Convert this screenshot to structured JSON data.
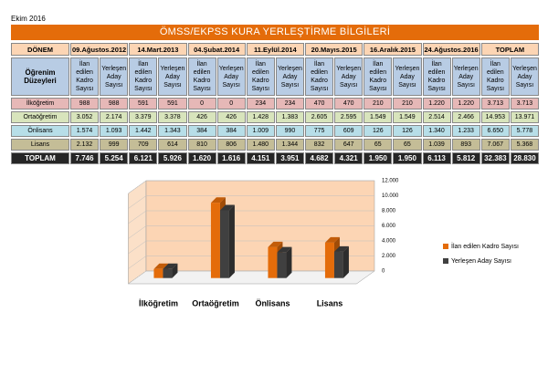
{
  "header": {
    "date": "Ekim 2016",
    "title": "ÖMSS/EKPSS KURA YERLEŞTİRME BİLGİLERİ"
  },
  "table": {
    "period_label": "DÖNEM",
    "periods": [
      "09.Ağustos.2012",
      "14.Mart.2013",
      "04.Şubat.2014",
      "11.Eylül.2014",
      "20.Mayıs.2015",
      "16.Aralık.2015",
      "24.Ağustos.2016",
      "TOPLAM"
    ],
    "level_label": "Öğrenim Düzeyleri",
    "sub_headers": [
      "İlan edilen Kadro Sayısı",
      "Yerleşen Aday Sayısı"
    ],
    "rows": [
      {
        "label": "İlköğretim",
        "values": [
          "988",
          "988",
          "591",
          "591",
          "0",
          "0",
          "234",
          "234",
          "470",
          "470",
          "210",
          "210",
          "1.220",
          "1.220",
          "3.713",
          "3.713"
        ]
      },
      {
        "label": "Ortaöğretim",
        "values": [
          "3.052",
          "2.174",
          "3.379",
          "3.378",
          "426",
          "426",
          "1.428",
          "1.383",
          "2.605",
          "2.595",
          "1.549",
          "1.549",
          "2.514",
          "2.466",
          "14.953",
          "13.971"
        ]
      },
      {
        "label": "Önlisans",
        "values": [
          "1.574",
          "1.093",
          "1.442",
          "1.343",
          "384",
          "384",
          "1.009",
          "990",
          "775",
          "609",
          "126",
          "126",
          "1.340",
          "1.233",
          "6.650",
          "5.778"
        ]
      },
      {
        "label": "Lisans",
        "values": [
          "2.132",
          "999",
          "709",
          "614",
          "810",
          "806",
          "1.480",
          "1.344",
          "832",
          "647",
          "65",
          "65",
          "1.039",
          "893",
          "7.067",
          "5.368"
        ]
      },
      {
        "label": "TOPLAM",
        "values": [
          "7.746",
          "5.254",
          "6.121",
          "5.926",
          "1.620",
          "1.616",
          "4.151",
          "3.951",
          "4.682",
          "4.321",
          "1.950",
          "1.950",
          "6.113",
          "5.812",
          "32.383",
          "28.830"
        ]
      }
    ]
  },
  "chart_data": {
    "type": "bar3d",
    "categories": [
      "İlköğretim",
      "Ortaöğretim",
      "Önlisans",
      "Lisans"
    ],
    "series": [
      {
        "name": "İlan edilen Kadro Sayısı",
        "color": "#e46c0a",
        "values": [
          1200,
          10000,
          4100,
          4700
        ]
      },
      {
        "name": "Yerleşen Aday Sayısı",
        "color": "#404040",
        "values": [
          1200,
          9000,
          3400,
          3500
        ]
      }
    ],
    "ylim": [
      0,
      12000
    ],
    "yticks": [
      0,
      {
        "value": 2000,
        "label": "2.000"
      },
      {
        "value": 4000,
        "label": "4.000"
      },
      {
        "value": 6000,
        "label": "6.000"
      },
      {
        "value": 8000,
        "label": "8.000"
      },
      {
        "value": 10000,
        "label": "10.000"
      },
      {
        "value": 12000,
        "label": "12.000"
      }
    ],
    "grid": true,
    "legend": "right"
  }
}
